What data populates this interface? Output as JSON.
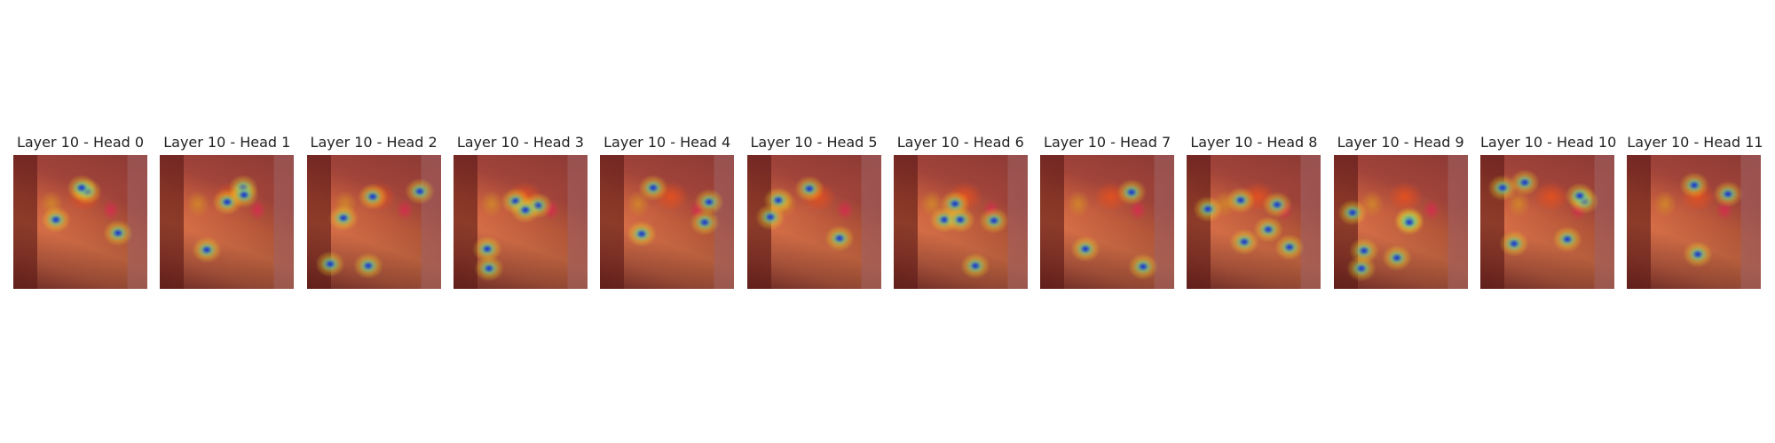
{
  "panels": [
    {
      "title": "Layer 10 - Head 0"
    },
    {
      "title": "Layer 10 - Head 1"
    },
    {
      "title": "Layer 10 - Head 2"
    },
    {
      "title": "Layer 10 - Head 3"
    },
    {
      "title": "Layer 10 - Head 4"
    },
    {
      "title": "Layer 10 - Head 5"
    },
    {
      "title": "Layer 10 - Head 6"
    },
    {
      "title": "Layer 10 - Head 7"
    },
    {
      "title": "Layer 10 - Head 8"
    },
    {
      "title": "Layer 10 - Head 9"
    },
    {
      "title": "Layer 10 - Head 10"
    },
    {
      "title": "Layer 10 - Head 11"
    }
  ]
}
